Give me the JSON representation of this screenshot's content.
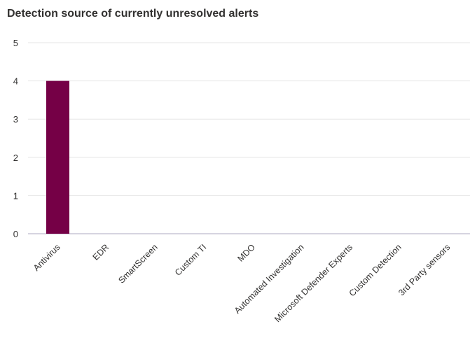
{
  "chart_data": {
    "type": "bar",
    "title": "Detection source of currently unresolved alerts",
    "categories": [
      "Antivirus",
      "EDR",
      "SmartScreen",
      "Custom TI",
      "MDO",
      "Automated Investigation",
      "Microsoft Defender Experts",
      "Custom Detection",
      "3rd Party sensors"
    ],
    "values": [
      4,
      0,
      0,
      0,
      0,
      0,
      0,
      0,
      0
    ],
    "yticks": [
      "0",
      "1",
      "2",
      "3",
      "4",
      "5"
    ],
    "ylim": [
      0,
      5
    ],
    "xlabel": "",
    "ylabel": "",
    "grid": true,
    "bar_color": "#750046"
  }
}
